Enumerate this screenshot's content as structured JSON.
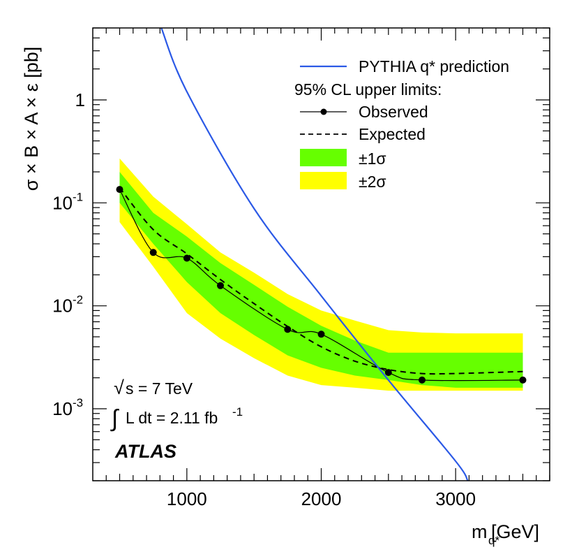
{
  "chart_data": {
    "type": "line",
    "x_scale": "linear",
    "y_scale": "log",
    "xlim": [
      300,
      3700
    ],
    "ylim": [
      0.0002,
      5
    ],
    "xlabel": {
      "main": "m",
      "sub": "q*",
      "unit": "[GeV]"
    },
    "ylabel": "σ × B × A × ε  [pb]",
    "x_ticks": [
      {
        "value": 1000,
        "label": "1000"
      },
      {
        "value": 2000,
        "label": "2000"
      },
      {
        "value": 3000,
        "label": "3000"
      }
    ],
    "y_ticks": [
      {
        "value": 1,
        "base": "1",
        "exp": ""
      },
      {
        "value": 0.1,
        "base": "10",
        "exp": "-1"
      },
      {
        "value": 0.01,
        "base": "10",
        "exp": "-2"
      },
      {
        "value": 0.001,
        "base": "10",
        "exp": "-3"
      }
    ],
    "series": [
      {
        "name": "PYTHIA q* prediction",
        "color": "#2b59e6",
        "x": [
          810,
          1000,
          1500,
          2000,
          2500,
          3000,
          3090
        ],
        "y": [
          5.0,
          1.2,
          0.088,
          0.0125,
          0.0019,
          0.00031,
          0.0002
        ]
      },
      {
        "name": "Observed",
        "color": "#000000",
        "x": [
          500,
          750,
          1000,
          1250,
          1750,
          2000,
          2500,
          2750,
          3500
        ],
        "y": [
          0.135,
          0.033,
          0.029,
          0.0157,
          0.0059,
          0.0053,
          0.00225,
          0.0019,
          0.0019
        ]
      },
      {
        "name": "Expected",
        "color": "#000000",
        "x": [
          500,
          750,
          1000,
          1250,
          1500,
          1750,
          2000,
          2250,
          2500,
          2750,
          3000,
          3500
        ],
        "y": [
          0.14,
          0.055,
          0.032,
          0.018,
          0.0105,
          0.0063,
          0.004,
          0.0029,
          0.0024,
          0.0022,
          0.0022,
          0.0023
        ]
      }
    ],
    "bands": [
      {
        "name": "±2σ",
        "color": "#ffff00",
        "x": [
          500,
          750,
          1000,
          1250,
          1500,
          1750,
          2000,
          2250,
          2500,
          2750,
          3000,
          3500
        ],
        "low": [
          0.065,
          0.024,
          0.0085,
          0.0048,
          0.0031,
          0.0021,
          0.0017,
          0.0016,
          0.0015,
          0.0015,
          0.0015,
          0.0015
        ],
        "high": [
          0.27,
          0.115,
          0.062,
          0.033,
          0.021,
          0.013,
          0.009,
          0.0072,
          0.0058,
          0.0055,
          0.0054,
          0.0054
        ]
      },
      {
        "name": "±1σ",
        "color": "#66ff00",
        "x": [
          500,
          750,
          1000,
          1250,
          1500,
          1750,
          2000,
          2250,
          2500,
          2750,
          3000,
          3500
        ],
        "low": [
          0.1,
          0.04,
          0.017,
          0.0085,
          0.0052,
          0.0033,
          0.0025,
          0.0021,
          0.0019,
          0.0017,
          0.0016,
          0.0016
        ],
        "high": [
          0.2,
          0.08,
          0.047,
          0.026,
          0.016,
          0.0098,
          0.0064,
          0.0046,
          0.0035,
          0.0035,
          0.0035,
          0.0035
        ]
      }
    ],
    "legend": {
      "position": "top-right",
      "header": "95% CL upper limits:",
      "entries": [
        {
          "key": "pythia",
          "label": "PYTHIA q* prediction"
        },
        {
          "key": "observed",
          "label": "Observed"
        },
        {
          "key": "expected",
          "label": "Expected"
        },
        {
          "key": "one_sigma",
          "label": "±1σ"
        },
        {
          "key": "two_sigma",
          "label": "±2σ"
        }
      ]
    },
    "annotations": {
      "sqrt_symbol": "√",
      "energy": "s = 7 TeV",
      "integral_symbol": "∫",
      "luminosity": "L dt = 2.11 fb",
      "luminosity_exp": "-1",
      "experiment": "ATLAS"
    }
  }
}
